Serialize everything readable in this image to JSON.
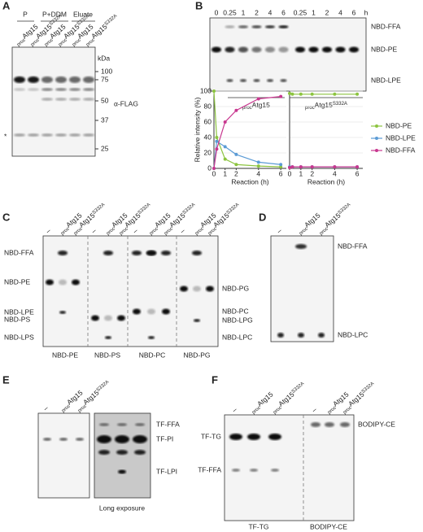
{
  "A": {
    "letter": "A",
    "groups": [
      "P",
      "P+DDM",
      "Eluate"
    ],
    "lanes": [
      {
        "sub": "proc",
        "text": "Atg15"
      },
      {
        "sub": "proc",
        "text": "Atg15",
        "sup": "S332A"
      },
      {
        "sub": "proc",
        "text": "Atg15"
      },
      {
        "sub": "proc",
        "text": "Atg15",
        "sup": "S332A"
      },
      {
        "sub": "proc",
        "text": "Atg15"
      },
      {
        "sub": "proc",
        "text": "Atg15",
        "sup": "S332A"
      }
    ],
    "unit": "kDa",
    "markers": [
      100,
      75,
      50,
      37,
      25
    ],
    "antibody": "α-FLAG",
    "asterisk": "*"
  },
  "B": {
    "letter": "B",
    "times": [
      0,
      0.25,
      1,
      2,
      4,
      6,
      0.25,
      1,
      2,
      4,
      6
    ],
    "unit": "h",
    "bands": [
      "NBD-FFA",
      "NBD-PE",
      "NBD-LPE"
    ],
    "groups": [
      {
        "sub": "proc",
        "text": "Atg15"
      },
      {
        "sub": "proc",
        "text": "Atg15",
        "sup": "S332A"
      }
    ]
  },
  "chart_data": [
    {
      "type": "line",
      "x": [
        0,
        0.25,
        1,
        2,
        4,
        6
      ],
      "xlim": [
        0,
        6.5
      ],
      "xticks": [
        0,
        1,
        2,
        4,
        6
      ],
      "ylim": [
        0,
        100
      ],
      "yticks": [
        0,
        20,
        40,
        60,
        80,
        100
      ],
      "grid": true,
      "ytick_labels": true,
      "xlabel": "Reaction (h)",
      "ylabel": "Relative intensity (%)",
      "series": [
        {
          "color": "#8cc43f",
          "values": [
            100,
            40,
            12,
            5,
            3,
            2
          ]
        },
        {
          "color": "#5b9bd5",
          "values": [
            0,
            35,
            28,
            18,
            8,
            5
          ]
        },
        {
          "color": "#c8378f",
          "values": [
            0,
            25,
            60,
            75,
            90,
            93
          ]
        }
      ]
    },
    {
      "type": "line",
      "x": [
        0,
        0.25,
        1,
        2,
        4,
        6
      ],
      "xlim": [
        0,
        6.5
      ],
      "xticks": [
        0,
        1,
        2,
        4,
        6
      ],
      "ylim": [
        0,
        100
      ],
      "yticks": [
        0,
        20,
        40,
        60,
        80,
        100
      ],
      "grid": true,
      "ytick_labels": false,
      "xlabel": "Reaction (h)",
      "legend": "right",
      "series": [
        {
          "name": "NBD-PE",
          "color": "#8cc43f",
          "values": [
            97,
            96,
            96,
            96,
            96,
            96
          ]
        },
        {
          "name": "NBD-LPE",
          "color": "#5b9bd5",
          "values": [
            2,
            2,
            2,
            2,
            2,
            2
          ]
        },
        {
          "name": "NBD-FFA",
          "color": "#c8378f",
          "values": [
            1,
            2,
            2,
            2,
            2,
            2
          ]
        }
      ]
    }
  ],
  "C": {
    "letter": "C",
    "lanes": [
      {
        "text": "–"
      },
      {
        "sub": "proc",
        "text": "Atg15"
      },
      {
        "sub": "proc",
        "text": "Atg15",
        "sup": "S332A"
      },
      {
        "text": "–"
      },
      {
        "sub": "proc",
        "text": "Atg15"
      },
      {
        "sub": "proc",
        "text": "Atg15",
        "sup": "S332A"
      },
      {
        "text": "–"
      },
      {
        "sub": "proc",
        "text": "Atg15"
      },
      {
        "sub": "proc",
        "text": "Atg15",
        "sup": "S332A"
      },
      {
        "text": "–"
      },
      {
        "sub": "proc",
        "text": "Atg15"
      },
      {
        "sub": "proc",
        "text": "Atg15",
        "sup": "S332A"
      }
    ],
    "left_bands": [
      "NBD-FFA",
      "NBD-PE",
      "NBD-LPE",
      "NBD-PS",
      "NBD-LPS"
    ],
    "right_bands": [
      "NBD-PG",
      "NBD-PC",
      "NBD-LPG",
      "NBD-LPC"
    ],
    "sections": [
      "NBD-PE",
      "NBD-PS",
      "NBD-PC",
      "NBD-PG"
    ]
  },
  "D": {
    "letter": "D",
    "lanes": [
      {
        "text": "–"
      },
      {
        "sub": "proc",
        "text": "Atg15"
      },
      {
        "sub": "proc",
        "text": "Atg15",
        "sup": "S332A"
      }
    ],
    "bands": [
      "NBD-FFA",
      "NBD-LPC"
    ]
  },
  "E": {
    "letter": "E",
    "lanes": [
      {
        "text": "–"
      },
      {
        "sub": "proc",
        "text": "Atg15"
      },
      {
        "sub": "proc",
        "text": "Atg15",
        "sup": "S332A"
      }
    ],
    "bands": [
      "TF-FFA",
      "TF-PI",
      "TF-LPI"
    ],
    "caption": "Long exposure"
  },
  "F": {
    "letter": "F",
    "lanes": [
      {
        "text": "–"
      },
      {
        "sub": "proc",
        "text": "Atg15"
      },
      {
        "sub": "proc",
        "text": "Atg15",
        "sup": "S332A"
      },
      {
        "text": "–"
      },
      {
        "sub": "proc",
        "text": "Atg15"
      },
      {
        "sub": "proc",
        "text": "Atg15",
        "sup": "S332A"
      }
    ],
    "left_bands": [
      "TF-TG",
      "TF-FFA"
    ],
    "right_bands": [
      "BODIPY-CE"
    ],
    "sections": [
      "TF-TG",
      "BODIPY-CE"
    ]
  }
}
